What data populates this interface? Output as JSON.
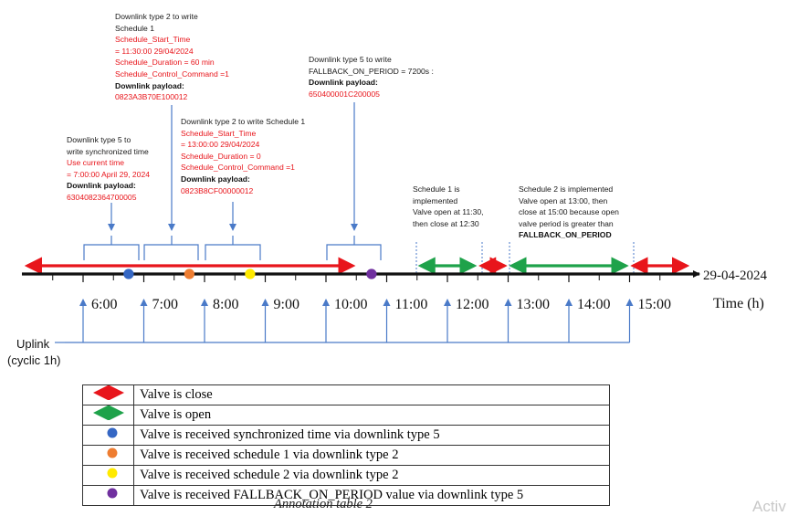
{
  "notes": [
    {
      "id": "note-schedule1",
      "lines": [
        {
          "t": "Downlink type 2 to write",
          "s": "plain"
        },
        {
          "t": "Schedule 1",
          "s": "plain"
        },
        {
          "t": "Schedule_Start_Time",
          "s": "red"
        },
        {
          "t": "= 11:30:00 29/04/2024",
          "s": "red"
        },
        {
          "t": "Schedule_Duration = 60 min",
          "s": "red"
        },
        {
          "t": "Schedule_Control_Command =1",
          "s": "red"
        },
        {
          "t": "Downlink payload:",
          "s": "bold"
        },
        {
          "t": "0823A3B70E100012",
          "s": "red"
        }
      ]
    },
    {
      "id": "note-sync-time",
      "lines": [
        {
          "t": "Downlink type 5 to",
          "s": "plain"
        },
        {
          "t": "write synchronized time",
          "s": "plain"
        },
        {
          "t": "Use current time",
          "s": "red"
        },
        {
          "t": "= 7:00:00 April 29, 2024",
          "s": "red"
        },
        {
          "t": "Downlink payload:",
          "s": "bold"
        },
        {
          "t": "6304082364700005",
          "s": "red"
        }
      ]
    },
    {
      "id": "note-schedule2",
      "lines": [
        {
          "t": "Downlink type 2 to write Schedule 1",
          "s": "plain"
        },
        {
          "t": "Schedule_Start_Time",
          "s": "red"
        },
        {
          "t": "= 13:00:00 29/04/2024",
          "s": "red"
        },
        {
          "t": "Schedule_Duration = 0",
          "s": "red"
        },
        {
          "t": "Schedule_Control_Command =1",
          "s": "red"
        },
        {
          "t": "Downlink payload:",
          "s": "bold"
        },
        {
          "t": "0823B8CF00000012",
          "s": "red"
        }
      ]
    },
    {
      "id": "note-fallback",
      "lines": [
        {
          "t": "Downlink type 5 to write",
          "s": "plain"
        },
        {
          "t": "FALLBACK_ON_PERIOD = 7200s :",
          "s": "plain"
        },
        {
          "t": "Downlink payload:",
          "s": "bold"
        },
        {
          "t": "650400001C200005",
          "s": "red"
        }
      ]
    },
    {
      "id": "note-schedule1-implemented",
      "lines": [
        {
          "t": "Schedule 1 is",
          "s": "plain"
        },
        {
          "t": "implemented",
          "s": "plain"
        },
        {
          "t": "Valve open at 11:30,",
          "s": "plain"
        },
        {
          "t": "then close at 12:30",
          "s": "plain"
        }
      ]
    },
    {
      "id": "note-schedule2-implemented",
      "lines": [
        {
          "t": "Schedule 2 is implemented",
          "s": "plain"
        },
        {
          "t": "Valve open at 13:00, then",
          "s": "plain"
        },
        {
          "t": "close at 15:00 because  open",
          "s": "plain"
        },
        {
          "t": "valve period is greater than",
          "s": "plain"
        },
        {
          "t": "FALLBACK_ON_PERIOD",
          "s": "bold"
        }
      ]
    }
  ],
  "timeline": {
    "date_label": "29-04-2024",
    "axis_label": "Time (h)",
    "hours": [
      "6:00",
      "7:00",
      "8:00",
      "9:00",
      "10:00",
      "11:00",
      "12:00",
      "13:00",
      "14:00",
      "15:00"
    ],
    "uplink_label_1": "Uplink",
    "uplink_label_2": "(cyclic 1h)",
    "valve_segments": [
      {
        "state": "close",
        "start": "5:00",
        "end": "10:30"
      },
      {
        "state": "open",
        "start": "11:30",
        "end": "12:30"
      },
      {
        "state": "close",
        "start": "12:30",
        "end": "13:00"
      },
      {
        "state": "open",
        "start": "13:00",
        "end": "15:00"
      },
      {
        "state": "close",
        "start": "15:00",
        "end": "16:00"
      }
    ],
    "events": [
      {
        "type": "sync-time",
        "time": "6:45"
      },
      {
        "type": "schedule-1",
        "time": "7:45"
      },
      {
        "type": "schedule-2",
        "time": "8:45"
      },
      {
        "type": "fallback",
        "time": "10:45"
      }
    ]
  },
  "colors": {
    "close": "#e8151b",
    "open": "#1ea24a",
    "blue_dot": "#3567c4",
    "orange_dot": "#ee7d31",
    "yellow_dot": "#ffea00",
    "purple_dot": "#70309f",
    "arrow": "#4a7ac8",
    "axis": "#111111"
  },
  "legend": [
    {
      "symbol": "red-arrow",
      "label": "Valve is close"
    },
    {
      "symbol": "green-arrow",
      "label": "Valve is open"
    },
    {
      "symbol": "blue-dot",
      "label": "Valve is received synchronized time via downlink type 5"
    },
    {
      "symbol": "orange-dot",
      "label": "Valve is received schedule 1 via downlink type 2"
    },
    {
      "symbol": "yellow-dot",
      "label": "Valve is received schedule 2 via downlink type 2"
    },
    {
      "symbol": "purple-dot",
      "label": "Valve is received FALLBACK_ON_PERIOD value via downlink type 5"
    }
  ],
  "caption": "Annotation table 2",
  "watermark": "Activ"
}
